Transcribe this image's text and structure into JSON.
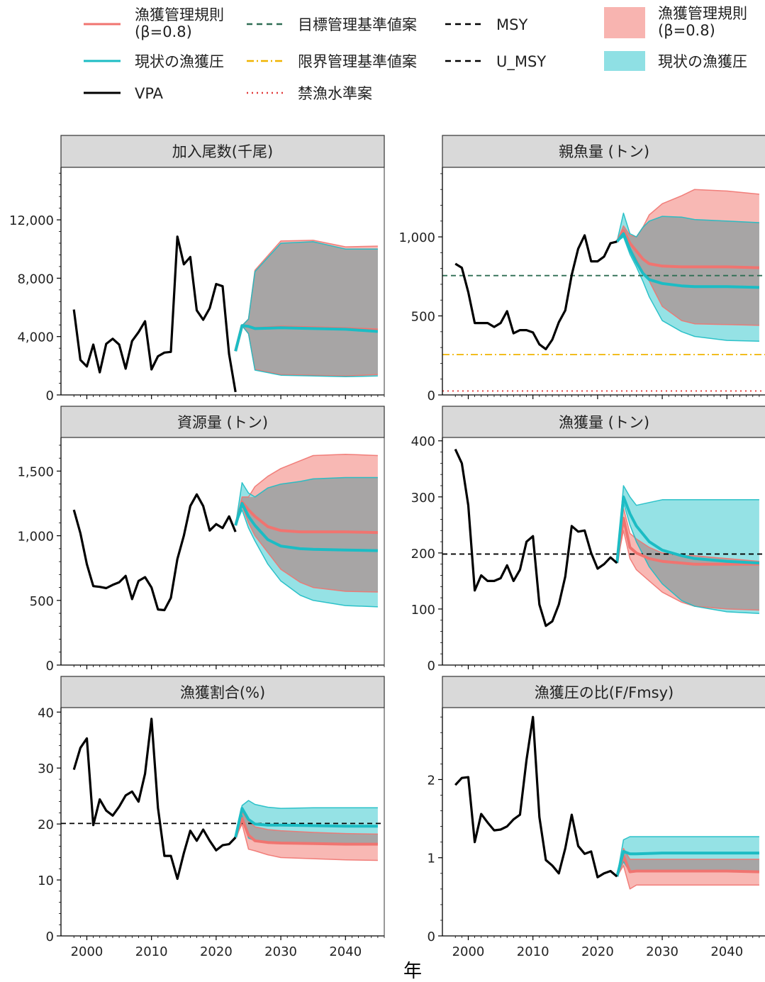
{
  "colors": {
    "hcr": "#f07470",
    "hcr_fill": "#f8b4b0",
    "current": "#1cbcc4",
    "current_fill": "#8fe0e4",
    "overlap_fill": "#a8a0a0",
    "vpa": "#000000",
    "target": "#2f6e54",
    "limit": "#f0b400",
    "ban": "#e23c3c",
    "panel_header": "#d9d9d9"
  },
  "legend": {
    "line_items": [
      {
        "label": "漁獲管理規則\n(β=0.8)",
        "key": "hcr_line",
        "style": "solid",
        "color": "#f07470"
      },
      {
        "label": "現状の漁獲圧",
        "key": "current_line",
        "style": "solid",
        "color": "#1cbcc4"
      },
      {
        "label": "VPA",
        "key": "vpa_line",
        "style": "solid",
        "color": "#000000"
      },
      {
        "label": "目標管理基準値案",
        "key": "target_line",
        "style": "dashed",
        "color": "#2f6e54"
      },
      {
        "label": "限界管理基準値案",
        "key": "limit_line",
        "style": "dashdot",
        "color": "#f0b400"
      },
      {
        "label": "禁漁水準案",
        "key": "ban_line",
        "style": "dotted",
        "color": "#e23c3c"
      },
      {
        "label": "MSY",
        "key": "msy_line",
        "style": "dashed",
        "color": "#000000"
      },
      {
        "label": "U_MSY",
        "key": "umsy_line",
        "style": "dashed",
        "color": "#000000"
      }
    ],
    "fill_items": [
      {
        "label": "漁獲管理規則\n(β=0.8)",
        "color": "#f8b4b0"
      },
      {
        "label": "現状の漁獲圧",
        "color": "#8fe0e4"
      }
    ]
  },
  "xlabel": "年",
  "chart_data": [
    {
      "type": "line",
      "title": "加入尾数(千尾)",
      "xlim": [
        1996,
        2046
      ],
      "ylim": [
        0,
        15600
      ],
      "yticks": [
        0,
        4000,
        8000,
        12000
      ],
      "ytick_labels": [
        "0",
        "4,000",
        "8,000",
        "12,000"
      ],
      "xticks": [
        2000,
        2010,
        2020,
        2030,
        2040
      ],
      "show_xticklabels": false,
      "vpa": {
        "x": [
          1998,
          1999,
          2000,
          2001,
          2002,
          2003,
          2004,
          2005,
          2006,
          2007,
          2008,
          2009,
          2010,
          2011,
          2012,
          2013,
          2014,
          2015,
          2016,
          2017,
          2018,
          2019,
          2020,
          2021,
          2022,
          2023
        ],
        "y": [
          5850,
          2400,
          1950,
          3450,
          1550,
          3500,
          3850,
          3450,
          1800,
          3700,
          4300,
          5050,
          1750,
          2650,
          2900,
          2950,
          10850,
          8950,
          9450,
          5800,
          5150,
          5950,
          7600,
          7450,
          2800,
          200
        ]
      },
      "hcr": {
        "x": [
          2023,
          2024,
          2025,
          2026,
          2030,
          2035,
          2040,
          2045
        ],
        "mean": [
          3000,
          4750,
          4700,
          4550,
          4650,
          4600,
          4550,
          4450
        ],
        "lo": [
          3000,
          4750,
          4200,
          1750,
          1400,
          1350,
          1300,
          1400
        ],
        "hi": [
          3000,
          4750,
          5200,
          8550,
          10550,
          10600,
          10150,
          10200
        ]
      },
      "cur": {
        "x": [
          2023,
          2024,
          2025,
          2026,
          2030,
          2035,
          2040,
          2045
        ],
        "mean": [
          3000,
          4750,
          4700,
          4550,
          4600,
          4550,
          4500,
          4350
        ],
        "lo": [
          3000,
          4750,
          4200,
          1700,
          1350,
          1300,
          1250,
          1300
        ],
        "hi": [
          3000,
          4750,
          5200,
          8450,
          10400,
          10500,
          10000,
          10000
        ]
      },
      "hlines": []
    },
    {
      "type": "line",
      "title": "親魚量 (トン)",
      "xlim": [
        1996,
        2046
      ],
      "ylim": [
        0,
        1440
      ],
      "yticks": [
        0,
        500,
        1000
      ],
      "ytick_labels": [
        "0",
        "500",
        "1,000"
      ],
      "xticks": [
        2000,
        2010,
        2020,
        2030,
        2040
      ],
      "show_xticklabels": false,
      "vpa": {
        "x": [
          1998,
          1999,
          2000,
          2001,
          2002,
          2003,
          2004,
          2005,
          2006,
          2007,
          2008,
          2009,
          2010,
          2011,
          2012,
          2013,
          2014,
          2015,
          2016,
          2017,
          2018,
          2019,
          2020,
          2021,
          2022,
          2023
        ],
        "y": [
          830,
          805,
          650,
          455,
          455,
          455,
          430,
          455,
          530,
          390,
          410,
          410,
          395,
          320,
          290,
          350,
          460,
          535,
          760,
          925,
          1010,
          845,
          845,
          875,
          960,
          970
        ]
      },
      "hcr": {
        "x": [
          2023,
          2024,
          2025,
          2026,
          2027,
          2028,
          2030,
          2033,
          2035,
          2040,
          2045
        ],
        "mean": [
          970,
          1040,
          960,
          910,
          860,
          830,
          815,
          810,
          810,
          810,
          805
        ],
        "lo": [
          970,
          1020,
          930,
          860,
          780,
          720,
          560,
          470,
          450,
          445,
          440
        ],
        "hi": [
          970,
          1070,
          1010,
          1000,
          1060,
          1140,
          1210,
          1260,
          1300,
          1290,
          1270
        ]
      },
      "cur": {
        "x": [
          2023,
          2024,
          2025,
          2026,
          2027,
          2028,
          2030,
          2033,
          2035,
          2040,
          2045
        ],
        "mean": [
          970,
          1020,
          920,
          840,
          770,
          730,
          705,
          690,
          685,
          685,
          680
        ],
        "lo": [
          970,
          1000,
          890,
          810,
          720,
          620,
          470,
          400,
          370,
          345,
          340
        ],
        "hi": [
          970,
          1150,
          1020,
          1000,
          1060,
          1100,
          1130,
          1125,
          1110,
          1100,
          1090
        ]
      },
      "hlines": [
        {
          "key": "target",
          "value": 755
        },
        {
          "key": "limit",
          "value": 255
        },
        {
          "key": "ban",
          "value": 25
        }
      ]
    },
    {
      "type": "line",
      "title": "資源量 (トン)",
      "xlim": [
        1996,
        2046
      ],
      "ylim": [
        0,
        1760
      ],
      "yticks": [
        0,
        500,
        1000,
        1500
      ],
      "ytick_labels": [
        "0",
        "500",
        "1,000",
        "1,500"
      ],
      "xticks": [
        2000,
        2010,
        2020,
        2030,
        2040
      ],
      "show_xticklabels": false,
      "vpa": {
        "x": [
          1998,
          1999,
          2000,
          2001,
          2002,
          2003,
          2004,
          2005,
          2006,
          2007,
          2008,
          2009,
          2010,
          2011,
          2012,
          2013,
          2014,
          2015,
          2016,
          2017,
          2018,
          2019,
          2020,
          2021,
          2022,
          2023
        ],
        "y": [
          1200,
          1020,
          780,
          610,
          605,
          595,
          620,
          640,
          690,
          510,
          650,
          680,
          600,
          430,
          425,
          520,
          820,
          1000,
          1230,
          1320,
          1230,
          1040,
          1090,
          1060,
          1150,
          1030
        ]
      },
      "hcr": {
        "x": [
          2023,
          2024,
          2025,
          2026,
          2028,
          2030,
          2033,
          2035,
          2040,
          2045
        ],
        "mean": [
          1080,
          1260,
          1200,
          1150,
          1070,
          1040,
          1030,
          1030,
          1030,
          1025
        ],
        "lo": [
          1080,
          1230,
          1100,
          1000,
          870,
          740,
          640,
          600,
          570,
          565
        ],
        "hi": [
          1080,
          1300,
          1300,
          1380,
          1460,
          1520,
          1580,
          1620,
          1630,
          1620
        ]
      },
      "cur": {
        "x": [
          2023,
          2024,
          2025,
          2026,
          2028,
          2030,
          2033,
          2035,
          2040,
          2045
        ],
        "mean": [
          1080,
          1250,
          1150,
          1080,
          970,
          920,
          900,
          895,
          890,
          885
        ],
        "lo": [
          1080,
          1200,
          1060,
          960,
          780,
          650,
          540,
          500,
          460,
          450
        ],
        "hi": [
          1080,
          1410,
          1330,
          1300,
          1370,
          1400,
          1420,
          1440,
          1450,
          1450
        ]
      },
      "hlines": []
    },
    {
      "type": "line",
      "title": "漁獲量 (トン)",
      "xlim": [
        1996,
        2046
      ],
      "ylim": [
        0,
        406
      ],
      "yticks": [
        0,
        100,
        200,
        300,
        400
      ],
      "ytick_labels": [
        "0",
        "100",
        "200",
        "300",
        "400"
      ],
      "xticks": [
        2000,
        2010,
        2020,
        2030,
        2040
      ],
      "show_xticklabels": false,
      "vpa": {
        "x": [
          1998,
          1999,
          2000,
          2001,
          2002,
          2003,
          2004,
          2005,
          2006,
          2007,
          2008,
          2009,
          2010,
          2011,
          2012,
          2013,
          2014,
          2015,
          2016,
          2017,
          2018,
          2019,
          2020,
          2021,
          2022,
          2023
        ],
        "y": [
          385,
          360,
          285,
          133,
          160,
          150,
          150,
          155,
          178,
          150,
          170,
          220,
          230,
          108,
          70,
          78,
          108,
          158,
          248,
          238,
          240,
          200,
          172,
          180,
          192,
          182
        ]
      },
      "hcr": {
        "x": [
          2023,
          2024,
          2025,
          2026,
          2028,
          2030,
          2033,
          2035,
          2040,
          2045
        ],
        "mean": [
          182,
          262,
          210,
          200,
          190,
          185,
          182,
          180,
          180,
          180
        ],
        "lo": [
          182,
          240,
          190,
          170,
          150,
          130,
          112,
          105,
          100,
          98
        ],
        "hi": [
          182,
          280,
          235,
          225,
          210,
          200,
          195,
          195,
          190,
          185
        ]
      },
      "cur": {
        "x": [
          2023,
          2024,
          2025,
          2026,
          2028,
          2030,
          2033,
          2035,
          2040,
          2045
        ],
        "mean": [
          182,
          300,
          270,
          248,
          220,
          205,
          195,
          190,
          185,
          182
        ],
        "lo": [
          182,
          290,
          250,
          220,
          175,
          145,
          115,
          105,
          95,
          92
        ],
        "hi": [
          182,
          320,
          300,
          285,
          290,
          295,
          295,
          295,
          295,
          295
        ]
      },
      "hlines": [
        {
          "key": "msy",
          "value": 198
        }
      ]
    },
    {
      "type": "line",
      "title": "漁獲割合(%)",
      "xlim": [
        1996,
        2046
      ],
      "ylim": [
        0,
        40.8
      ],
      "yticks": [
        0,
        10,
        20,
        30,
        40
      ],
      "ytick_labels": [
        "0",
        "10",
        "20",
        "30",
        "40"
      ],
      "xticks": [
        2000,
        2010,
        2020,
        2030,
        2040
      ],
      "show_xticklabels": true,
      "xtick_labels": [
        "2000",
        "2010",
        "2020",
        "2030",
        "2040"
      ],
      "vpa": {
        "x": [
          1998,
          1999,
          2000,
          2001,
          2002,
          2003,
          2004,
          2005,
          2006,
          2007,
          2008,
          2009,
          2010,
          2011,
          2012,
          2013,
          2014,
          2015,
          2016,
          2017,
          2018,
          2019,
          2020,
          2021,
          2022,
          2023
        ],
        "y": [
          29.7,
          33.6,
          35.3,
          19.8,
          24.4,
          22.4,
          21.5,
          23.1,
          25.1,
          25.8,
          24.0,
          29.0,
          38.8,
          22.9,
          14.3,
          14.3,
          10.2,
          14.8,
          18.8,
          17.0,
          19.0,
          17.0,
          15.3,
          16.2,
          16.4,
          17.6
        ]
      },
      "hcr": {
        "x": [
          2023,
          2024,
          2025,
          2026,
          2028,
          2030,
          2035,
          2040,
          2045
        ],
        "mean": [
          17.6,
          21.0,
          18.0,
          17.0,
          16.7,
          16.6,
          16.5,
          16.4,
          16.4
        ],
        "lo": [
          17.6,
          20.0,
          15.5,
          15.2,
          14.5,
          14.0,
          13.8,
          13.6,
          13.5
        ],
        "hi": [
          17.6,
          22.2,
          20.5,
          19.5,
          19.0,
          18.8,
          18.5,
          18.3,
          18.2
        ]
      },
      "cur": {
        "x": [
          2023,
          2024,
          2025,
          2026,
          2028,
          2030,
          2035,
          2040,
          2045
        ],
        "mean": [
          17.6,
          22.8,
          20.8,
          20.0,
          19.8,
          19.8,
          19.7,
          19.6,
          19.6
        ],
        "lo": [
          17.6,
          21.5,
          17.5,
          17.0,
          16.8,
          16.7,
          16.6,
          16.5,
          16.5
        ],
        "hi": [
          17.6,
          23.3,
          24.2,
          23.5,
          23.0,
          22.8,
          22.9,
          22.9,
          22.9
        ]
      },
      "hlines": [
        {
          "key": "umsy",
          "value": 20.1
        }
      ]
    },
    {
      "type": "line",
      "title": "漁獲圧の比(F/Fmsy)",
      "xlim": [
        1996,
        2046
      ],
      "ylim": [
        0,
        2.92
      ],
      "yticks": [
        0,
        1,
        2
      ],
      "ytick_labels": [
        "0",
        "1",
        "2"
      ],
      "xticks": [
        2000,
        2010,
        2020,
        2030,
        2040
      ],
      "show_xticklabels": true,
      "xtick_labels": [
        "2000",
        "2010",
        "2020",
        "2030",
        "2040"
      ],
      "vpa": {
        "x": [
          1998,
          1999,
          2000,
          2001,
          2002,
          2003,
          2004,
          2005,
          2006,
          2007,
          2008,
          2009,
          2010,
          2011,
          2012,
          2013,
          2014,
          2015,
          2016,
          2017,
          2018,
          2019,
          2020,
          2021,
          2022,
          2023
        ],
        "y": [
          1.93,
          2.02,
          2.03,
          1.2,
          1.56,
          1.45,
          1.35,
          1.36,
          1.4,
          1.49,
          1.55,
          2.25,
          2.8,
          1.52,
          0.97,
          0.9,
          0.8,
          1.12,
          1.55,
          1.15,
          1.05,
          1.08,
          0.75,
          0.8,
          0.83,
          0.76
        ]
      },
      "hcr": {
        "x": [
          2023,
          2024,
          2025,
          2026,
          2030,
          2035,
          2040,
          2045
        ],
        "mean": [
          0.76,
          1.02,
          0.82,
          0.83,
          0.83,
          0.83,
          0.83,
          0.82
        ],
        "lo": [
          0.76,
          0.9,
          0.6,
          0.65,
          0.65,
          0.65,
          0.65,
          0.65
        ],
        "hi": [
          0.76,
          1.12,
          0.98,
          0.98,
          0.98,
          0.98,
          0.98,
          0.98
        ]
      },
      "cur": {
        "x": [
          2023,
          2024,
          2025,
          2026,
          2030,
          2035,
          2040,
          2045
        ],
        "mean": [
          0.76,
          1.08,
          1.05,
          1.05,
          1.06,
          1.06,
          1.06,
          1.06
        ],
        "lo": [
          0.76,
          0.95,
          0.82,
          0.82,
          0.83,
          0.83,
          0.83,
          0.83
        ],
        "hi": [
          0.76,
          1.23,
          1.27,
          1.27,
          1.27,
          1.27,
          1.27,
          1.27
        ]
      },
      "hlines": []
    }
  ]
}
